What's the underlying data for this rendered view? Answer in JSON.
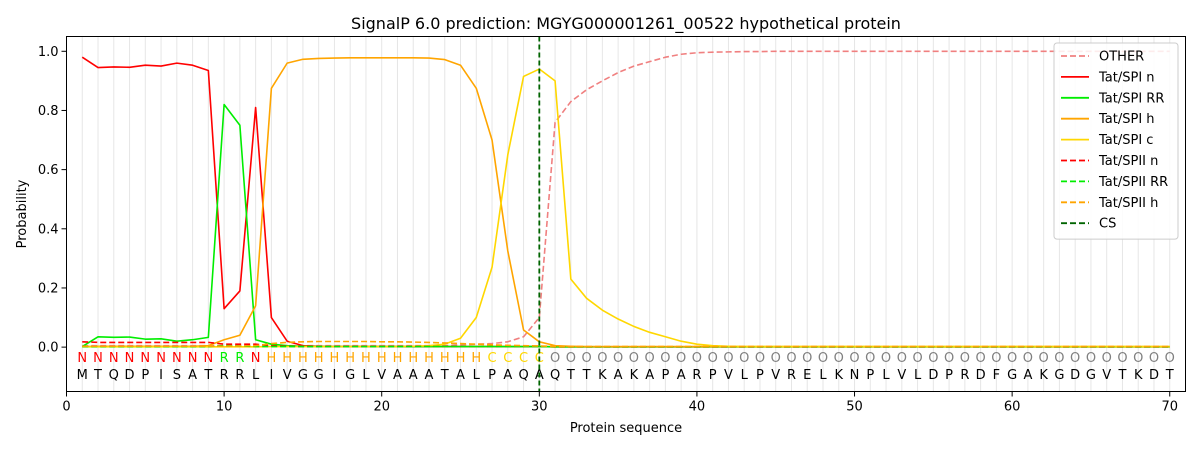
{
  "chart_data": {
    "type": "line",
    "title": "SignalP 6.0 prediction: MGYG000001261_00522 hypothetical protein",
    "xlabel": "Protein sequence",
    "ylabel": "Probability",
    "xlim": [
      0,
      71
    ],
    "ylim": [
      -0.15,
      1.05
    ],
    "xticks": [
      0,
      10,
      20,
      30,
      40,
      50,
      60,
      70
    ],
    "yticks": [
      0.0,
      0.2,
      0.4,
      0.6,
      0.8,
      1.0
    ],
    "ytick_labels": [
      "0.0",
      "0.2",
      "0.4",
      "0.6",
      "0.8",
      "1.0"
    ],
    "grid": "vertical lines at each residue",
    "legend_position": "top-right",
    "sequence": [
      "M",
      "T",
      "Q",
      "D",
      "P",
      "I",
      "S",
      "A",
      "T",
      "R",
      "R",
      "L",
      "I",
      "V",
      "G",
      "G",
      "I",
      "G",
      "L",
      "V",
      "A",
      "A",
      "A",
      "T",
      "A",
      "L",
      "P",
      "A",
      "Q",
      "A",
      "Q",
      "T",
      "T",
      "K",
      "A",
      "K",
      "A",
      "P",
      "A",
      "R",
      "P",
      "V",
      "L",
      "P",
      "V",
      "R",
      "E",
      "L",
      "K",
      "N",
      "P",
      "L",
      "V",
      "L",
      "D",
      "P",
      "R",
      "D",
      "F",
      "G",
      "A",
      "K",
      "G",
      "D",
      "G",
      "V",
      "T",
      "K",
      "D",
      "T"
    ],
    "labels": [
      "N",
      "N",
      "N",
      "N",
      "N",
      "N",
      "N",
      "N",
      "N",
      "R",
      "R",
      "N",
      "H",
      "H",
      "H",
      "H",
      "H",
      "H",
      "H",
      "H",
      "H",
      "H",
      "H",
      "H",
      "H",
      "H",
      "C",
      "C",
      "C",
      "C",
      "O",
      "O",
      "O",
      "O",
      "O",
      "O",
      "O",
      "O",
      "O",
      "O",
      "O",
      "O",
      "O",
      "O",
      "O",
      "O",
      "O",
      "O",
      "O",
      "O",
      "O",
      "O",
      "O",
      "O",
      "O",
      "O",
      "O",
      "O",
      "O",
      "O",
      "O",
      "O",
      "O",
      "O",
      "O",
      "O",
      "O",
      "O",
      "O",
      "O"
    ],
    "label_colors": {
      "N": "#ff0000",
      "R": "#00ee00",
      "H": "#ffa500",
      "C": "#ffd700",
      "O": "#808080"
    },
    "cleavage_site": 30,
    "series": [
      {
        "name": "OTHER",
        "color": "#f08080",
        "dash": true,
        "values": [
          0.005,
          0.005,
          0.005,
          0.005,
          0.005,
          0.005,
          0.005,
          0.005,
          0.005,
          0.005,
          0.005,
          0.005,
          0.005,
          0.005,
          0.005,
          0.005,
          0.005,
          0.005,
          0.005,
          0.005,
          0.005,
          0.005,
          0.005,
          0.005,
          0.008,
          0.01,
          0.012,
          0.018,
          0.035,
          0.1,
          0.76,
          0.83,
          0.87,
          0.9,
          0.928,
          0.95,
          0.965,
          0.98,
          0.99,
          0.995,
          0.997,
          0.998,
          0.999,
          0.999,
          1,
          1,
          1,
          1,
          1,
          1,
          1,
          1,
          1,
          1,
          1,
          1,
          1,
          1,
          1,
          1,
          1,
          1,
          1,
          1,
          1,
          1,
          1,
          1,
          1,
          1
        ]
      },
      {
        "name": "Tat/SPI n",
        "color": "#ff0000",
        "dash": false,
        "values": [
          0.98,
          0.945,
          0.947,
          0.946,
          0.953,
          0.95,
          0.96,
          0.953,
          0.935,
          0.13,
          0.19,
          0.81,
          0.1,
          0.02,
          0.005,
          0.003,
          0.002,
          0.002,
          0.002,
          0.002,
          0.002,
          0.002,
          0.002,
          0.002,
          0.002,
          0.002,
          0.002,
          0.002,
          0.002,
          0.002,
          0.001,
          0.001,
          0.001,
          0.001,
          0.001,
          0.001,
          0.001,
          0.001,
          0.001,
          0.001,
          0.001,
          0.001,
          0.001,
          0.001,
          0.001,
          0.001,
          0.001,
          0.001,
          0.001,
          0.001,
          0.001,
          0.001,
          0.001,
          0.001,
          0.001,
          0.001,
          0.001,
          0.001,
          0.001,
          0.001,
          0.001,
          0.001,
          0.001,
          0.001,
          0.001,
          0.001,
          0.001,
          0.001,
          0.001,
          0.001
        ]
      },
      {
        "name": "Tat/SPI RR",
        "color": "#00ee00",
        "dash": false,
        "values": [
          0.002,
          0.035,
          0.033,
          0.034,
          0.027,
          0.028,
          0.02,
          0.025,
          0.033,
          0.82,
          0.75,
          0.025,
          0.01,
          0.005,
          0.003,
          0.002,
          0.002,
          0.002,
          0.002,
          0.002,
          0.002,
          0.002,
          0.002,
          0.002,
          0.002,
          0.002,
          0.002,
          0.002,
          0.002,
          0.002,
          0.001,
          0.001,
          0.001,
          0.001,
          0.001,
          0.001,
          0.001,
          0.001,
          0.001,
          0.001,
          0.001,
          0.001,
          0.001,
          0.001,
          0.001,
          0.001,
          0.001,
          0.001,
          0.001,
          0.001,
          0.001,
          0.001,
          0.001,
          0.001,
          0.001,
          0.001,
          0.001,
          0.001,
          0.001,
          0.001,
          0.001,
          0.001,
          0.001,
          0.001,
          0.001,
          0.001,
          0.001,
          0.001,
          0.001,
          0.001
        ]
      },
      {
        "name": "Tat/SPI h",
        "color": "#ffa500",
        "dash": false,
        "values": [
          0.002,
          0.003,
          0.003,
          0.003,
          0.003,
          0.003,
          0.003,
          0.003,
          0.005,
          0.025,
          0.04,
          0.14,
          0.875,
          0.96,
          0.973,
          0.976,
          0.977,
          0.978,
          0.978,
          0.978,
          0.978,
          0.978,
          0.977,
          0.972,
          0.953,
          0.875,
          0.7,
          0.325,
          0.058,
          0.018,
          0.005,
          0.003,
          0.002,
          0.002,
          0.002,
          0.002,
          0.002,
          0.002,
          0.002,
          0.002,
          0.002,
          0.002,
          0.002,
          0.002,
          0.002,
          0.002,
          0.002,
          0.002,
          0.002,
          0.002,
          0.002,
          0.002,
          0.002,
          0.002,
          0.002,
          0.002,
          0.002,
          0.002,
          0.002,
          0.002,
          0.002,
          0.002,
          0.002,
          0.002,
          0.002,
          0.002,
          0.002,
          0.002,
          0.002,
          0.002
        ]
      },
      {
        "name": "Tat/SPI c",
        "color": "#ffd700",
        "dash": false,
        "values": [
          0.001,
          0.001,
          0.001,
          0.001,
          0.001,
          0.001,
          0.001,
          0.001,
          0.001,
          0.001,
          0.001,
          0.001,
          0.002,
          0.002,
          0.002,
          0.002,
          0.002,
          0.002,
          0.002,
          0.002,
          0.002,
          0.003,
          0.005,
          0.01,
          0.03,
          0.1,
          0.27,
          0.65,
          0.915,
          0.94,
          0.9,
          0.23,
          0.165,
          0.125,
          0.095,
          0.07,
          0.05,
          0.035,
          0.02,
          0.01,
          0.005,
          0.003,
          0.002,
          0.002,
          0.002,
          0.002,
          0.002,
          0.002,
          0.002,
          0.002,
          0.002,
          0.002,
          0.002,
          0.002,
          0.002,
          0.002,
          0.002,
          0.002,
          0.002,
          0.002,
          0.002,
          0.002,
          0.002,
          0.002,
          0.002,
          0.002,
          0.002,
          0.002,
          0.002,
          0.002
        ]
      },
      {
        "name": "Tat/SPII n",
        "color": "#ff0000",
        "dash": true,
        "values": [
          0.018,
          0.016,
          0.016,
          0.016,
          0.016,
          0.016,
          0.016,
          0.016,
          0.016,
          0.01,
          0.01,
          0.01,
          0.005,
          0.003,
          0.002,
          0.002,
          0.002,
          0.002,
          0.002,
          0.002,
          0.002,
          0.002,
          0.002,
          0.002,
          0.002,
          0.002,
          0.002,
          0.002,
          0.002,
          0.002,
          0.001,
          0.001,
          0.001,
          0.001,
          0.001,
          0.001,
          0.001,
          0.001,
          0.001,
          0.001,
          0.001,
          0.001,
          0.001,
          0.001,
          0.001,
          0.001,
          0.001,
          0.001,
          0.001,
          0.001,
          0.001,
          0.001,
          0.001,
          0.001,
          0.001,
          0.001,
          0.001,
          0.001,
          0.001,
          0.001,
          0.001,
          0.001,
          0.001,
          0.001,
          0.001,
          0.001,
          0.001,
          0.001,
          0.001,
          0.001
        ]
      },
      {
        "name": "Tat/SPII RR",
        "color": "#00ee00",
        "dash": true,
        "values": [
          0.002,
          0.002,
          0.002,
          0.002,
          0.002,
          0.002,
          0.002,
          0.002,
          0.002,
          0.005,
          0.004,
          0.002,
          0.002,
          0.002,
          0.002,
          0.002,
          0.002,
          0.002,
          0.002,
          0.002,
          0.002,
          0.002,
          0.002,
          0.002,
          0.002,
          0.002,
          0.002,
          0.002,
          0.002,
          0.002,
          0.001,
          0.001,
          0.001,
          0.001,
          0.001,
          0.001,
          0.001,
          0.001,
          0.001,
          0.001,
          0.001,
          0.001,
          0.001,
          0.001,
          0.001,
          0.001,
          0.001,
          0.001,
          0.001,
          0.001,
          0.001,
          0.001,
          0.001,
          0.001,
          0.001,
          0.001,
          0.001,
          0.001,
          0.001,
          0.001,
          0.001,
          0.001,
          0.001,
          0.001,
          0.001,
          0.001,
          0.001,
          0.001,
          0.001,
          0.001
        ]
      },
      {
        "name": "Tat/SPII h",
        "color": "#ffa500",
        "dash": true,
        "values": [
          0.003,
          0.003,
          0.003,
          0.003,
          0.003,
          0.003,
          0.003,
          0.003,
          0.003,
          0.003,
          0.004,
          0.005,
          0.012,
          0.016,
          0.018,
          0.019,
          0.019,
          0.019,
          0.019,
          0.018,
          0.018,
          0.017,
          0.016,
          0.014,
          0.012,
          0.01,
          0.008,
          0.006,
          0.005,
          0.004,
          0.002,
          0.002,
          0.002,
          0.002,
          0.002,
          0.002,
          0.002,
          0.002,
          0.002,
          0.002,
          0.002,
          0.002,
          0.002,
          0.002,
          0.002,
          0.002,
          0.002,
          0.002,
          0.002,
          0.002,
          0.002,
          0.002,
          0.002,
          0.002,
          0.002,
          0.002,
          0.002,
          0.002,
          0.002,
          0.002,
          0.002,
          0.002,
          0.002,
          0.002,
          0.002,
          0.002,
          0.002,
          0.002,
          0.002,
          0.002
        ]
      }
    ],
    "cs_legend": {
      "name": "CS",
      "color": "#006400"
    }
  }
}
